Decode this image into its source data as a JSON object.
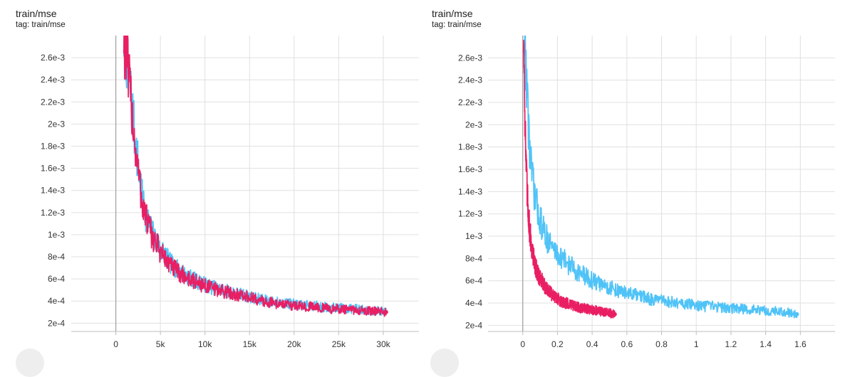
{
  "panels": [
    {
      "title": "train/mse",
      "tag": "tag: train/mse"
    },
    {
      "title": "train/mse",
      "tag": "tag: train/mse"
    }
  ],
  "chart_data": [
    {
      "type": "line",
      "title": "train/mse",
      "xlabel": "",
      "ylabel": "",
      "xlim": [
        -5000,
        34000
      ],
      "ylim": [
        0.000125,
        0.0028
      ],
      "x_ticks": [
        0,
        5000,
        10000,
        15000,
        20000,
        25000,
        30000
      ],
      "x_tick_labels": [
        "0",
        "5k",
        "10k",
        "15k",
        "20k",
        "25k",
        "30k"
      ],
      "y_ticks": [
        0.0002,
        0.0004,
        0.0006,
        0.0008,
        0.001,
        0.0012,
        0.0014,
        0.0016,
        0.0018,
        0.002,
        0.0022,
        0.0024,
        0.0026
      ],
      "y_tick_labels": [
        "2e-4",
        "4e-4",
        "6e-4",
        "8e-4",
        "1e-3",
        "1.2e-3",
        "1.4e-3",
        "1.6e-3",
        "1.8e-3",
        "2e-3",
        "2.2e-3",
        "2.4e-3",
        "2.6e-3"
      ],
      "grid": true,
      "colors": [
        "#4fc3f7",
        "#e91e63"
      ],
      "series": [
        {
          "color": "#4fc3f7",
          "x": [
            900,
            1200,
            1500,
            1800,
            2100,
            2400,
            2700,
            3000,
            3300,
            3600,
            4000,
            4500,
            5000,
            5500,
            6000,
            7000,
            8000,
            9000,
            10000,
            11000,
            12000,
            13000,
            14000,
            15000,
            16000,
            17000,
            18000,
            19000,
            20000,
            21000,
            22000,
            23000,
            24000,
            25000,
            26000,
            27000,
            28000,
            29000,
            30000,
            30300
          ],
          "y": [
            0.0028,
            0.00265,
            0.0024,
            0.0022,
            0.0019,
            0.0017,
            0.0015,
            0.0013,
            0.0012,
            0.00112,
            0.00103,
            0.00095,
            0.00088,
            0.00082,
            0.00075,
            0.00068,
            0.00063,
            0.00058,
            0.00055,
            0.00052,
            0.0005,
            0.00048,
            0.00046,
            0.00044,
            0.00042,
            0.0004,
            0.00039,
            0.00038,
            0.00037,
            0.00036,
            0.00036,
            0.00035,
            0.00034,
            0.00034,
            0.00033,
            0.00033,
            0.00032,
            0.00031,
            0.00031,
            0.0003
          ]
        },
        {
          "color": "#e91e63",
          "x": [
            900,
            1200,
            1500,
            1800,
            2100,
            2400,
            2700,
            3000,
            3300,
            3600,
            4000,
            4500,
            5000,
            5500,
            6000,
            7000,
            8000,
            9000,
            10000,
            11000,
            12000,
            13000,
            14000,
            15000,
            16000,
            17000,
            18000,
            19000,
            20000,
            21000,
            22000,
            23000,
            24000,
            25000,
            26000,
            27000,
            28000,
            29000,
            30000,
            30300
          ],
          "y": [
            0.0028,
            0.0026,
            0.00235,
            0.00215,
            0.00185,
            0.00165,
            0.00145,
            0.00128,
            0.00118,
            0.0011,
            0.001,
            0.00092,
            0.00085,
            0.00079,
            0.00073,
            0.00066,
            0.00061,
            0.00057,
            0.00054,
            0.00051,
            0.00049,
            0.00047,
            0.00045,
            0.00043,
            0.00041,
            0.00039,
            0.00038,
            0.00037,
            0.00036,
            0.00035,
            0.00035,
            0.00034,
            0.00033,
            0.00033,
            0.00032,
            0.00032,
            0.00031,
            0.00031,
            0.0003,
            0.0003
          ]
        }
      ]
    },
    {
      "type": "line",
      "title": "train/mse",
      "xlabel": "",
      "ylabel": "",
      "xlim": [
        -0.2,
        1.8
      ],
      "ylim": [
        0.000145,
        0.0028
      ],
      "x_ticks": [
        0,
        0.2,
        0.4,
        0.6,
        0.8,
        1,
        1.2,
        1.4,
        1.6
      ],
      "x_tick_labels": [
        "0",
        "0.2",
        "0.4",
        "0.6",
        "0.8",
        "1",
        "1.2",
        "1.4",
        "1.6"
      ],
      "y_ticks": [
        0.0002,
        0.0004,
        0.0006,
        0.0008,
        0.001,
        0.0012,
        0.0014,
        0.0016,
        0.0018,
        0.002,
        0.0022,
        0.0024,
        0.0026
      ],
      "y_tick_labels": [
        "2e-4",
        "4e-4",
        "6e-4",
        "8e-4",
        "1e-3",
        "1.2e-3",
        "1.4e-3",
        "1.6e-3",
        "1.8e-3",
        "2e-3",
        "2.2e-3",
        "2.4e-3",
        "2.6e-3"
      ],
      "grid": true,
      "colors": [
        "#4fc3f7",
        "#e91e63"
      ],
      "series": [
        {
          "color": "#4fc3f7",
          "x": [
            0.01,
            0.02,
            0.03,
            0.04,
            0.05,
            0.06,
            0.08,
            0.1,
            0.12,
            0.15,
            0.18,
            0.2,
            0.25,
            0.3,
            0.35,
            0.4,
            0.45,
            0.5,
            0.55,
            0.6,
            0.65,
            0.7,
            0.75,
            0.8,
            0.85,
            0.9,
            0.95,
            1.0,
            1.05,
            1.1,
            1.15,
            1.2,
            1.25,
            1.3,
            1.35,
            1.4,
            1.45,
            1.5,
            1.55,
            1.58
          ],
          "y": [
            0.0028,
            0.0025,
            0.0021,
            0.0018,
            0.0016,
            0.00145,
            0.00128,
            0.00115,
            0.00105,
            0.00095,
            0.00088,
            0.00084,
            0.00077,
            0.0007,
            0.00065,
            0.0006,
            0.00057,
            0.00054,
            0.00051,
            0.00049,
            0.00047,
            0.00045,
            0.00043,
            0.00042,
            0.00041,
            0.0004,
            0.00039,
            0.00038,
            0.00037,
            0.00037,
            0.00036,
            0.00035,
            0.00035,
            0.00034,
            0.00034,
            0.00033,
            0.00033,
            0.00032,
            0.00031,
            0.0003
          ]
        },
        {
          "color": "#e91e63",
          "x": [
            0.005,
            0.01,
            0.015,
            0.02,
            0.025,
            0.03,
            0.04,
            0.05,
            0.06,
            0.07,
            0.08,
            0.1,
            0.12,
            0.14,
            0.16,
            0.18,
            0.2,
            0.22,
            0.25,
            0.28,
            0.3,
            0.33,
            0.36,
            0.4,
            0.43,
            0.46,
            0.5,
            0.53
          ],
          "y": [
            0.0028,
            0.0024,
            0.0019,
            0.0016,
            0.0014,
            0.00125,
            0.00105,
            0.00092,
            0.00082,
            0.00075,
            0.0007,
            0.00062,
            0.00057,
            0.00052,
            0.00049,
            0.00046,
            0.00044,
            0.00042,
            0.0004,
            0.00038,
            0.00037,
            0.00036,
            0.00035,
            0.00034,
            0.00033,
            0.00032,
            0.00031,
            0.0003
          ]
        }
      ]
    }
  ]
}
